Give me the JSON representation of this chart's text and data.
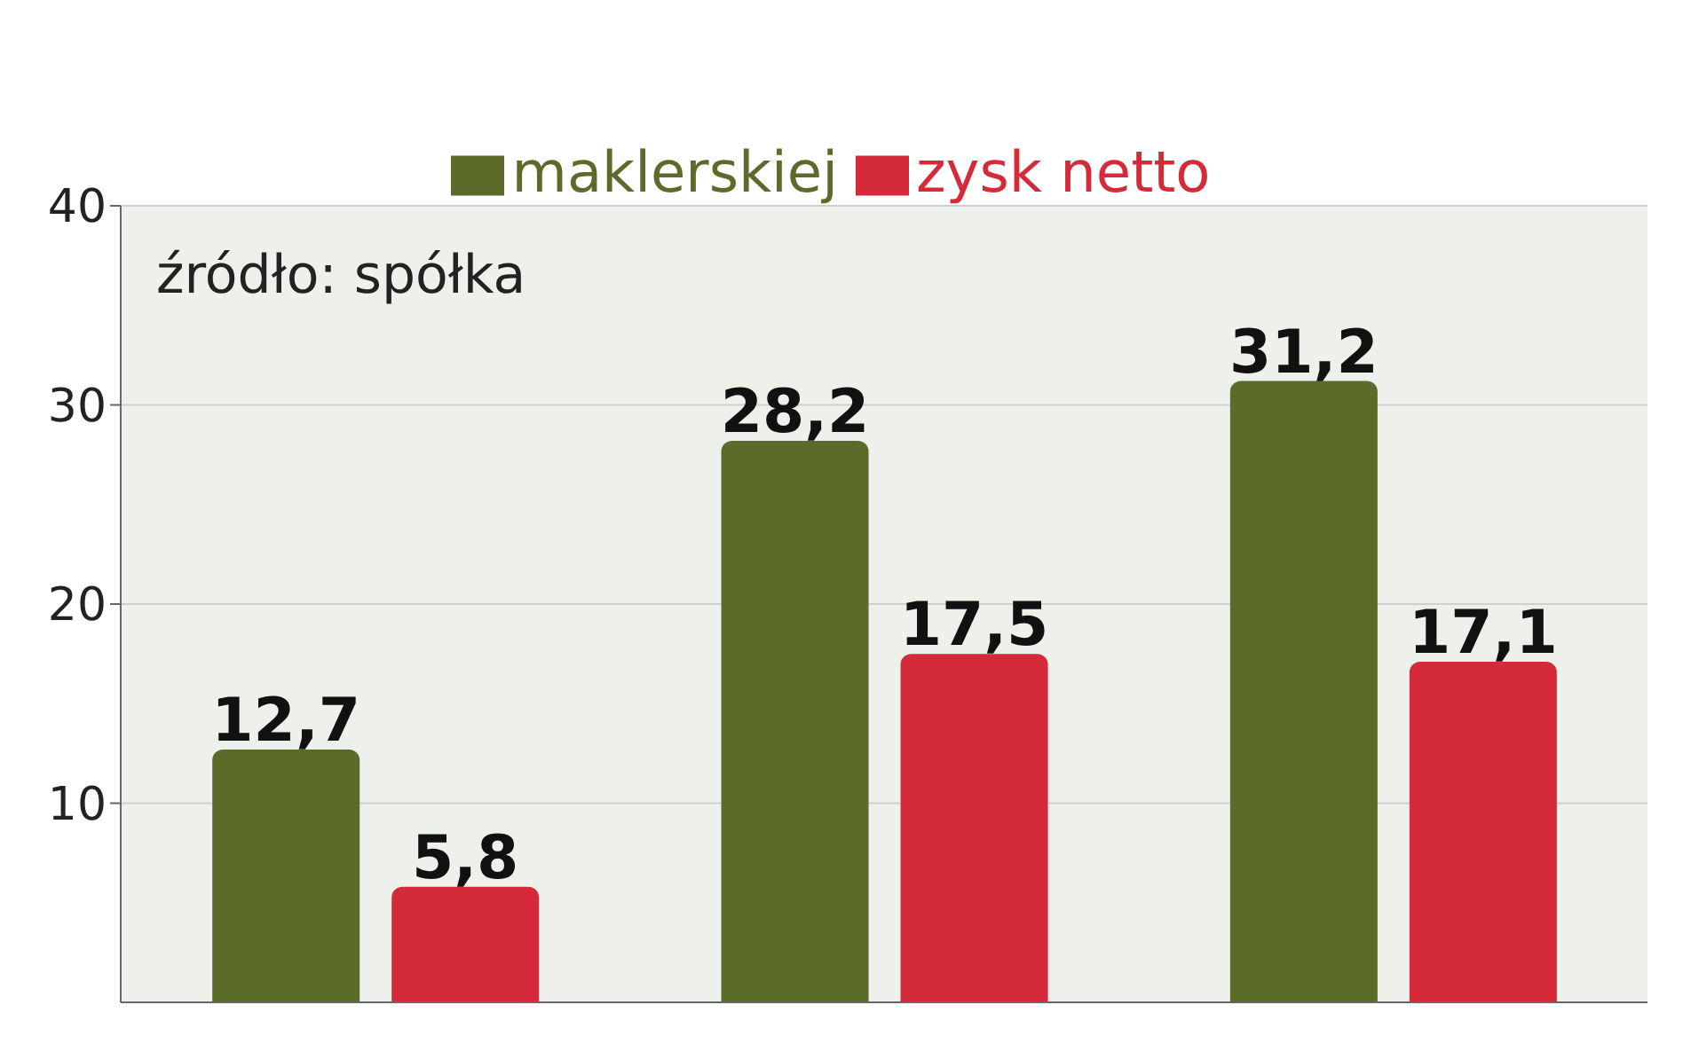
{
  "chart_data": {
    "type": "bar",
    "categories": [
      null,
      null,
      null
    ],
    "series": [
      {
        "name": "maklerskiej",
        "color": "#5a6b2a",
        "values": [
          12.7,
          28.2,
          31.2
        ],
        "value_labels": [
          "12,7",
          "28,2",
          "31,2"
        ]
      },
      {
        "name": "zysk netto",
        "color": "#d42a3a",
        "values": [
          5.8,
          17.5,
          17.1
        ],
        "value_labels": [
          "5,8",
          "17,5",
          "17,1"
        ]
      }
    ],
    "ylim": [
      0,
      40
    ],
    "yticks": [
      10,
      20,
      30,
      40
    ],
    "grid": "y",
    "legend": "top",
    "annotations": [
      "źródło: spółka"
    ]
  }
}
